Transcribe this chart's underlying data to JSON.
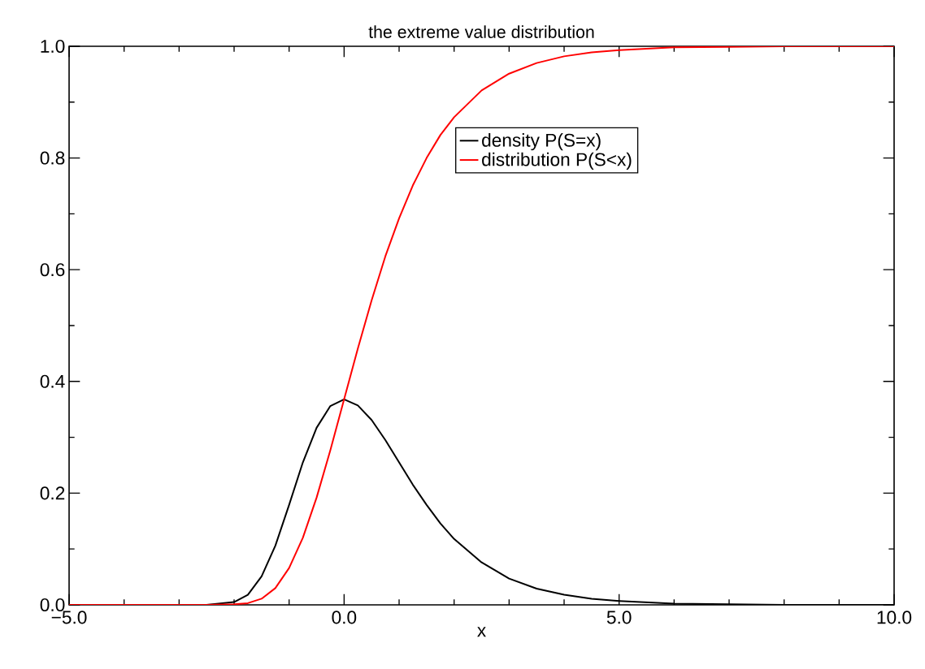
{
  "chart_data": {
    "type": "line",
    "title": "the extreme value distribution",
    "xlabel": "x",
    "x": [
      -5,
      -3,
      -2.5,
      -2,
      -1.75,
      -1.5,
      -1.25,
      -1,
      -0.75,
      -0.5,
      -0.25,
      0,
      0.25,
      0.5,
      0.75,
      1,
      1.25,
      1.5,
      1.75,
      2,
      2.5,
      3,
      3.5,
      4,
      4.5,
      5,
      6,
      7,
      8,
      10
    ],
    "series": [
      {
        "name": "density P(S=x)",
        "color": "#000000",
        "values": [
          0,
          0,
          0,
          0.005,
          0.018,
          0.051,
          0.106,
          0.179,
          0.255,
          0.317,
          0.356,
          0.368,
          0.357,
          0.331,
          0.295,
          0.255,
          0.215,
          0.179,
          0.146,
          0.118,
          0.076,
          0.047,
          0.029,
          0.018,
          0.011,
          0.007,
          0.002,
          0.001,
          0,
          0
        ]
      },
      {
        "name": "distribution P(S<x)",
        "color": "#ff0000",
        "values": [
          0,
          0,
          0,
          0.001,
          0.003,
          0.011,
          0.03,
          0.066,
          0.12,
          0.192,
          0.277,
          0.368,
          0.459,
          0.545,
          0.624,
          0.692,
          0.751,
          0.8,
          0.841,
          0.873,
          0.921,
          0.951,
          0.97,
          0.982,
          0.989,
          0.993,
          0.998,
          0.999,
          1.0,
          1.0
        ]
      }
    ],
    "xlim": [
      -5,
      10
    ],
    "ylim": [
      0,
      1
    ],
    "xticks": [
      {
        "value": -5,
        "label": "−5.0"
      },
      {
        "value": 0,
        "label": "0.0"
      },
      {
        "value": 5,
        "label": "5.0"
      },
      {
        "value": 10,
        "label": "10.0"
      }
    ],
    "yticks": [
      {
        "value": 0,
        "label": "0.0"
      },
      {
        "value": 0.2,
        "label": "0.2"
      },
      {
        "value": 0.4,
        "label": "0.4"
      },
      {
        "value": 0.6,
        "label": "0.6"
      },
      {
        "value": 0.8,
        "label": "0.8"
      },
      {
        "value": 1,
        "label": "1.0"
      }
    ],
    "legend": "top right",
    "grid": false,
    "marker": "none",
    "line_style": "solid"
  }
}
